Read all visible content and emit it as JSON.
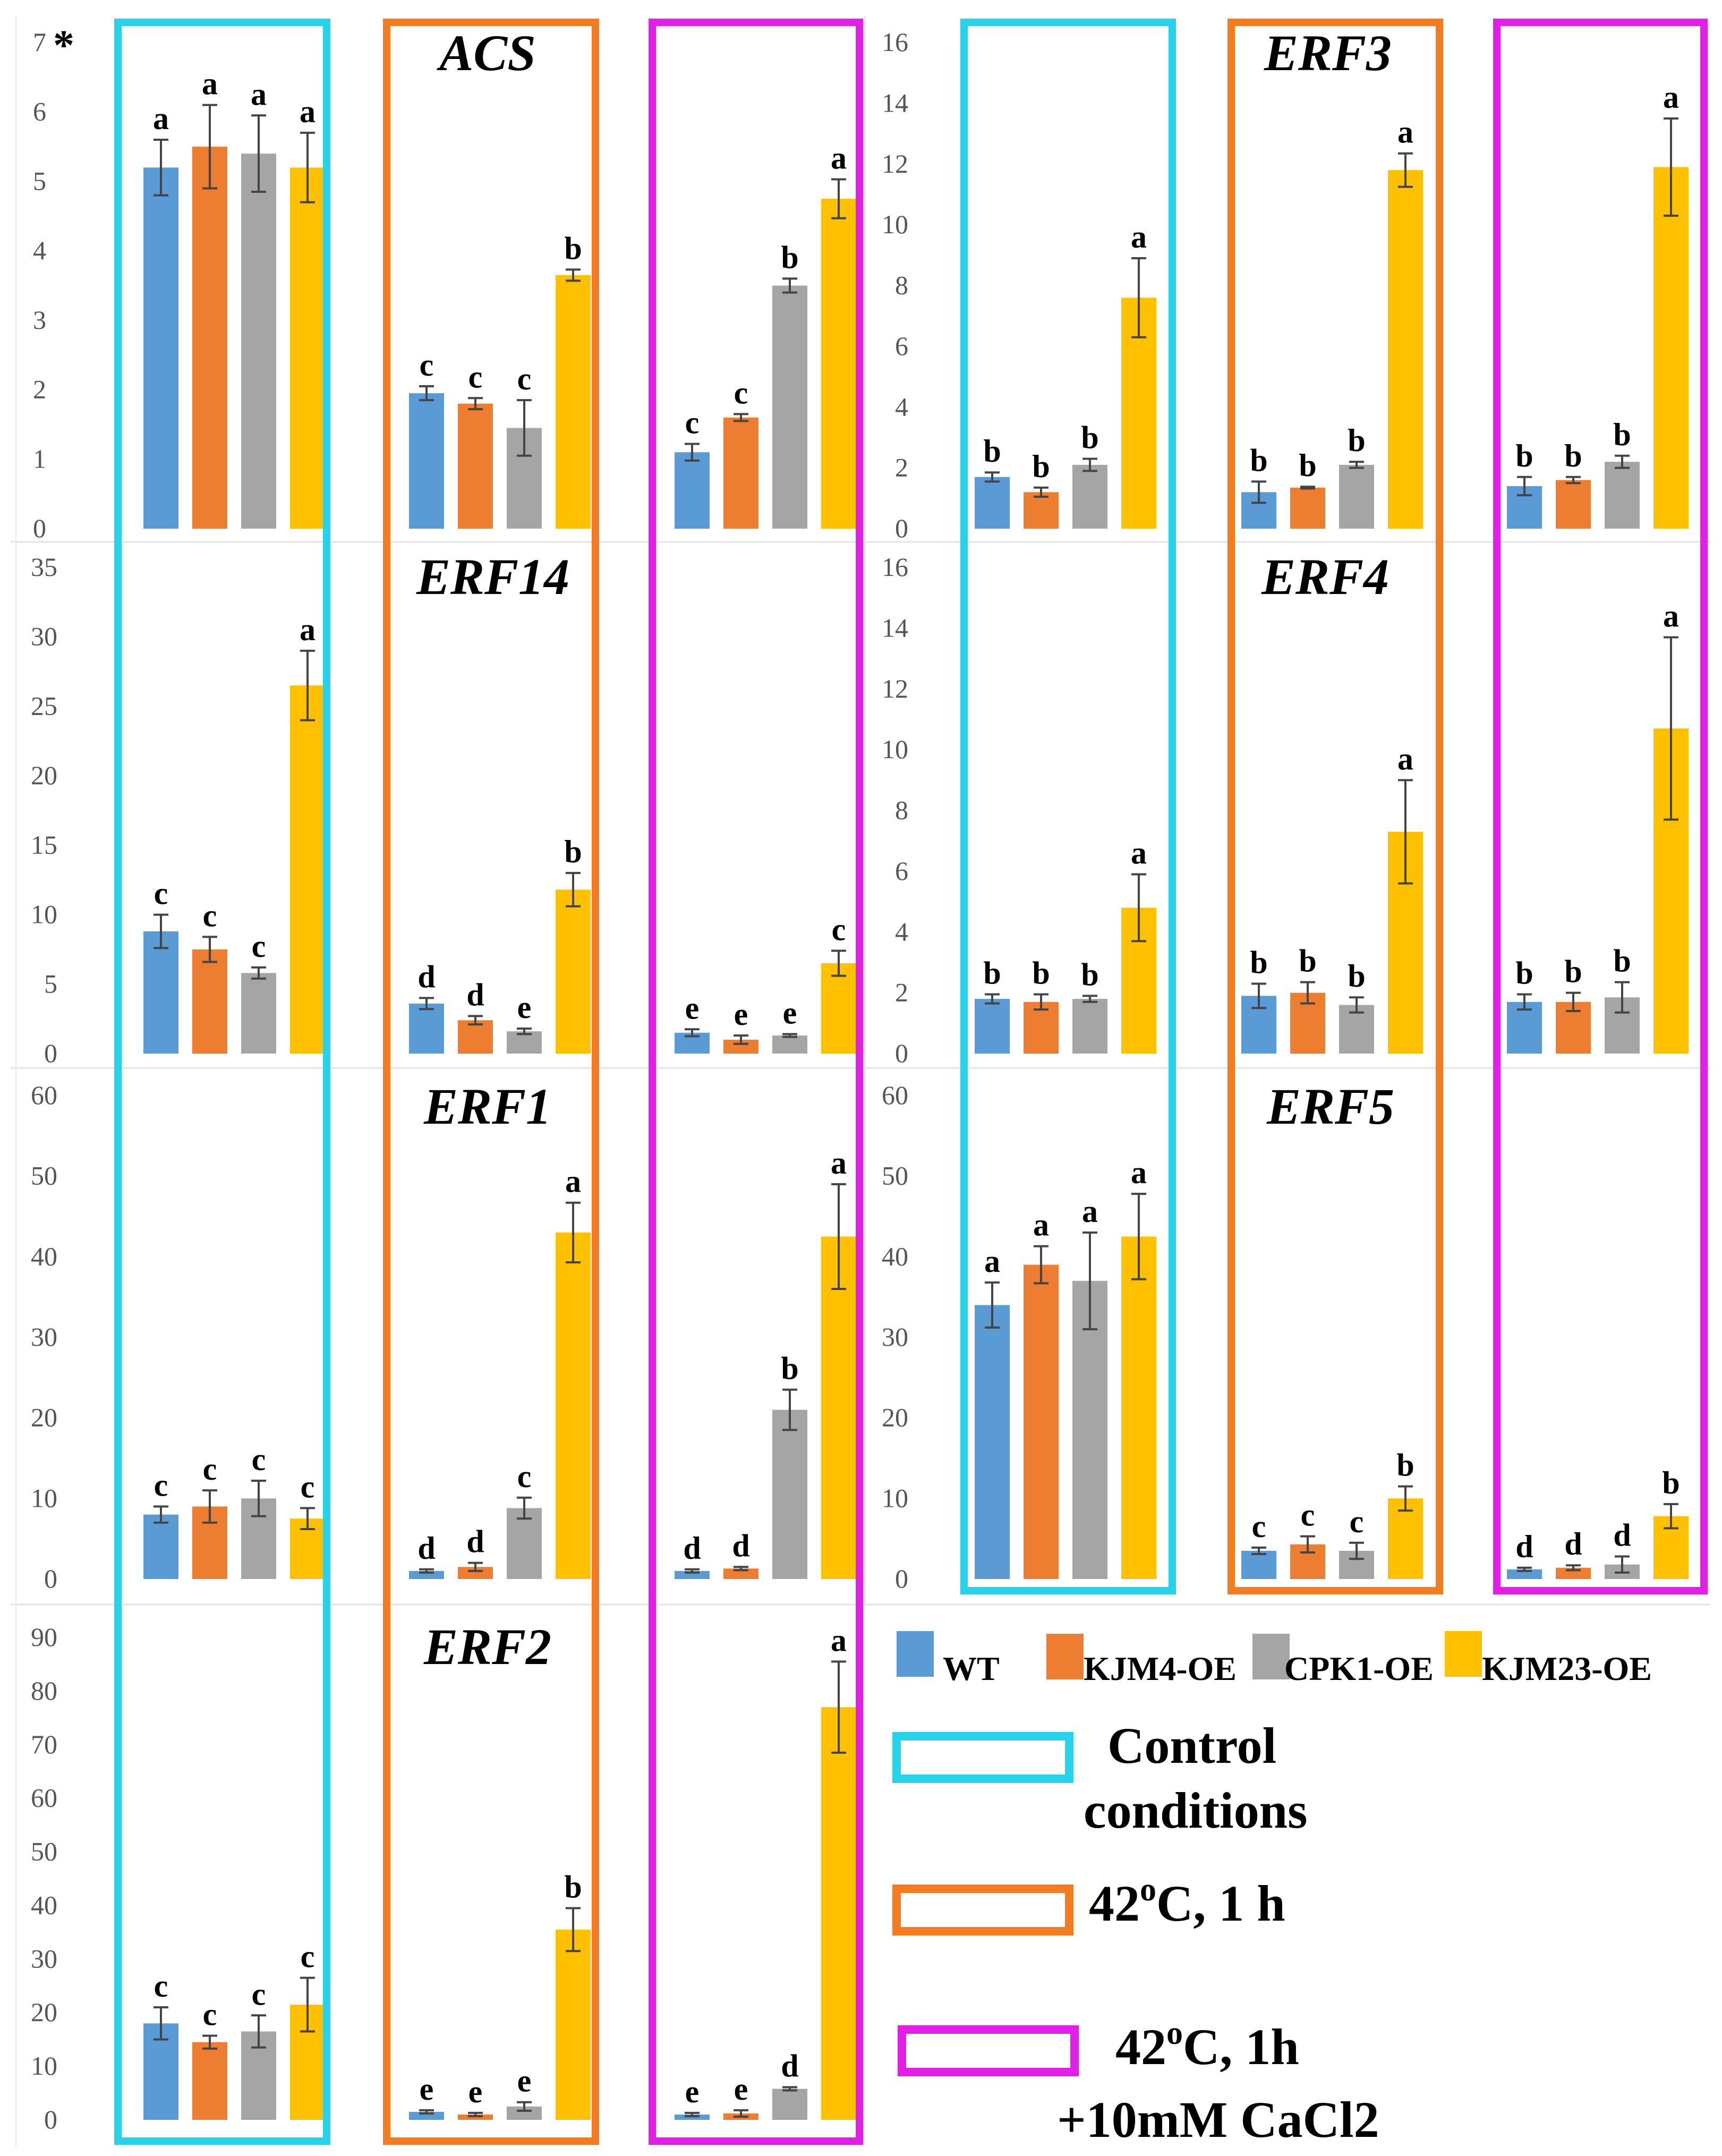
{
  "chart_data": {
    "type": "bar",
    "groups": [
      "WT",
      "KJM4-OE",
      "CPK1-OE",
      "KJM23-OE"
    ],
    "colors": {
      "WT": "#5b9bd5",
      "KJM4-OE": "#ed7d31",
      "CPK1-OE": "#a5a5a5",
      "KJM23-OE": "#ffc000",
      "control_box": "#27d3ea",
      "heat_box": "#f47b20",
      "heat_ca_box": "#e21fe6"
    },
    "conditions": [
      "Control conditions",
      "42oC, 1 h",
      "42oC, 1h +10mM CaCl2"
    ],
    "panels": [
      {
        "gene": "ACS",
        "yticks": [
          "0",
          "1",
          "2",
          "3",
          "4",
          "5",
          "6",
          "7"
        ],
        "ymax": 7,
        "asterisk": "*",
        "sets": [
          {
            "values": [
              5.2,
              5.5,
              5.4,
              5.2
            ],
            "errors": [
              0.4,
              0.6,
              0.55,
              0.5
            ],
            "letters": [
              "a",
              "a",
              "a",
              "a"
            ]
          },
          {
            "values": [
              1.95,
              1.8,
              1.45,
              3.65
            ],
            "errors": [
              0.1,
              0.08,
              0.4,
              0.08
            ],
            "letters": [
              "c",
              "c",
              "c",
              "b"
            ]
          },
          {
            "values": [
              1.1,
              1.6,
              3.5,
              4.75
            ],
            "errors": [
              0.12,
              0.05,
              0.1,
              0.28
            ],
            "letters": [
              "c",
              "c",
              "b",
              "a"
            ]
          }
        ]
      },
      {
        "gene": "ERF3",
        "yticks": [
          "0",
          "2",
          "4",
          "6",
          "8",
          "10",
          "12",
          "14",
          "16"
        ],
        "ymax": 16,
        "sets": [
          {
            "values": [
              1.7,
              1.2,
              2.1,
              7.6
            ],
            "errors": [
              0.15,
              0.15,
              0.2,
              1.3
            ],
            "letters": [
              "b",
              "b",
              "b",
              "a"
            ]
          },
          {
            "values": [
              1.2,
              1.35,
              2.1,
              11.8
            ],
            "errors": [
              0.35,
              0.03,
              0.1,
              0.55
            ],
            "letters": [
              "b",
              "b",
              "b",
              "a"
            ]
          },
          {
            "values": [
              1.4,
              1.6,
              2.2,
              11.9
            ],
            "errors": [
              0.3,
              0.1,
              0.2,
              1.6
            ],
            "letters": [
              "b",
              "b",
              "b",
              "a"
            ]
          }
        ]
      },
      {
        "gene": "ERF14",
        "yticks": [
          "0",
          "5",
          "10",
          "15",
          "20",
          "25",
          "30",
          "35"
        ],
        "ymax": 35,
        "sets": [
          {
            "values": [
              8.8,
              7.5,
              5.8,
              26.5
            ],
            "errors": [
              1.2,
              0.9,
              0.4,
              2.5
            ],
            "letters": [
              "c",
              "c",
              "c",
              "a"
            ]
          },
          {
            "values": [
              3.6,
              2.4,
              1.6,
              11.8
            ],
            "errors": [
              0.4,
              0.3,
              0.2,
              1.2
            ],
            "letters": [
              "d",
              "d",
              "e",
              "b"
            ]
          },
          {
            "values": [
              1.5,
              1.0,
              1.3,
              6.5
            ],
            "errors": [
              0.25,
              0.3,
              0.1,
              0.9
            ],
            "letters": [
              "e",
              "e",
              "e",
              "c"
            ]
          }
        ]
      },
      {
        "gene": "ERF4",
        "yticks": [
          "0",
          "2",
          "4",
          "6",
          "8",
          "10",
          "12",
          "14",
          "16"
        ],
        "ymax": 16,
        "sets": [
          {
            "values": [
              1.8,
              1.7,
              1.8,
              4.8
            ],
            "errors": [
              0.15,
              0.25,
              0.1,
              1.1
            ],
            "letters": [
              "b",
              "b",
              "b",
              "a"
            ]
          },
          {
            "values": [
              1.9,
              2.0,
              1.6,
              7.3
            ],
            "errors": [
              0.4,
              0.35,
              0.25,
              1.7
            ],
            "letters": [
              "b",
              "b",
              "b",
              "a"
            ]
          },
          {
            "values": [
              1.7,
              1.7,
              1.85,
              10.7
            ],
            "errors": [
              0.25,
              0.3,
              0.5,
              3.0
            ],
            "letters": [
              "b",
              "b",
              "b",
              "a"
            ]
          }
        ]
      },
      {
        "gene": "ERF1",
        "yticks": [
          "0",
          "10",
          "20",
          "30",
          "40",
          "50",
          "60"
        ],
        "ymax": 60,
        "sets": [
          {
            "values": [
              8.0,
              9.0,
              10.0,
              7.5
            ],
            "errors": [
              1.0,
              2.0,
              2.2,
              1.3
            ],
            "letters": [
              "c",
              "c",
              "c",
              "c"
            ]
          },
          {
            "values": [
              1.0,
              1.5,
              8.8,
              43.0
            ],
            "errors": [
              0.2,
              0.5,
              1.3,
              3.7
            ],
            "letters": [
              "d",
              "d",
              "c",
              "a"
            ]
          },
          {
            "values": [
              1.0,
              1.3,
              21.0,
              42.5
            ],
            "errors": [
              0.2,
              0.2,
              2.5,
              6.5
            ],
            "letters": [
              "d",
              "d",
              "b",
              "a"
            ]
          }
        ]
      },
      {
        "gene": "ERF5",
        "yticks": [
          "0",
          "10",
          "20",
          "30",
          "40",
          "50",
          "60"
        ],
        "ymax": 60,
        "sets": [
          {
            "values": [
              34.0,
              39.0,
              37.0,
              42.5
            ],
            "errors": [
              2.8,
              2.3,
              6.0,
              5.3
            ],
            "letters": [
              "a",
              "a",
              "a",
              "a"
            ]
          },
          {
            "values": [
              3.5,
              4.3,
              3.5,
              10.0
            ],
            "errors": [
              0.4,
              1.0,
              1.0,
              1.5
            ],
            "letters": [
              "c",
              "c",
              "c",
              "b"
            ]
          },
          {
            "values": [
              1.2,
              1.4,
              1.8,
              7.8
            ],
            "errors": [
              0.2,
              0.3,
              1.0,
              1.5
            ],
            "letters": [
              "d",
              "d",
              "d",
              "b"
            ]
          }
        ]
      },
      {
        "gene": "ERF2",
        "yticks": [
          "0",
          "10",
          "20",
          "30",
          "40",
          "50",
          "60",
          "70",
          "80",
          "90"
        ],
        "ymax": 90,
        "sets": [
          {
            "values": [
              18.0,
              14.5,
              16.5,
              21.5
            ],
            "errors": [
              3.0,
              1.2,
              3.0,
              5.0
            ],
            "letters": [
              "c",
              "c",
              "c",
              "c"
            ]
          },
          {
            "values": [
              1.5,
              1.0,
              2.5,
              35.5
            ],
            "errors": [
              0.3,
              0.3,
              0.8,
              4.0
            ],
            "letters": [
              "e",
              "e",
              "e",
              "b"
            ]
          },
          {
            "values": [
              1.0,
              1.2,
              5.8,
              77.0
            ],
            "errors": [
              0.3,
              0.6,
              0.3,
              8.5
            ],
            "letters": [
              "e",
              "e",
              "d",
              "a"
            ]
          }
        ]
      }
    ],
    "legend": {
      "series_labels": [
        "WT",
        "KJM4-OE",
        "CPK1-OE",
        "KJM23-OE"
      ],
      "control_label_line1": "Control",
      "control_label_line2": "conditions",
      "heat_label_temp": "42",
      "heat_label_deg": "o",
      "heat_label_rest": "C, 1 h",
      "heat_ca_label_temp": "42",
      "heat_ca_label_deg": "o",
      "heat_ca_label_rest": "C, 1h",
      "heat_ca_label_line2": "+10mM CaCl2"
    }
  }
}
